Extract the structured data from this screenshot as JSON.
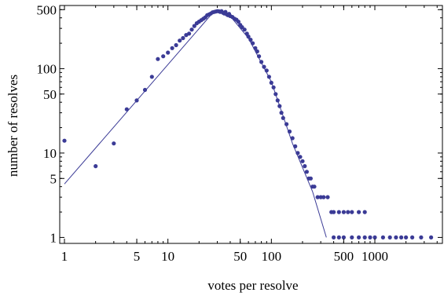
{
  "chart_data": {
    "type": "scatter",
    "title": "",
    "xlabel": "votes per resolve",
    "ylabel": "number of resolves",
    "xscale": "log",
    "yscale": "log",
    "xlim": [
      0.9,
      4500
    ],
    "ylim": [
      0.85,
      560
    ],
    "x_ticks": [
      {
        "value": 1,
        "label": "1"
      },
      {
        "value": 5,
        "label": "5"
      },
      {
        "value": 10,
        "label": "10"
      },
      {
        "value": 50,
        "label": "50"
      },
      {
        "value": 100,
        "label": "100"
      },
      {
        "value": 500,
        "label": "500"
      },
      {
        "value": 1000,
        "label": "1000"
      }
    ],
    "y_ticks": [
      {
        "value": 1,
        "label": "1"
      },
      {
        "value": 5,
        "label": "5"
      },
      {
        "value": 10,
        "label": "10"
      },
      {
        "value": 50,
        "label": "50"
      },
      {
        "value": 100,
        "label": "100"
      },
      {
        "value": 500,
        "label": "500"
      }
    ],
    "series": [
      {
        "points": [
          [
            1,
            14
          ],
          [
            2,
            7
          ],
          [
            3,
            13
          ],
          [
            4,
            33
          ],
          [
            5,
            42
          ],
          [
            6,
            56
          ],
          [
            7,
            80
          ],
          [
            8,
            130
          ],
          [
            9,
            140
          ],
          [
            10,
            155
          ],
          [
            11,
            175
          ],
          [
            12,
            190
          ],
          [
            13,
            215
          ],
          [
            14,
            230
          ],
          [
            15,
            250
          ],
          [
            16,
            260
          ],
          [
            17,
            290
          ],
          [
            18,
            320
          ],
          [
            19,
            345
          ],
          [
            20,
            360
          ],
          [
            21,
            375
          ],
          [
            22,
            390
          ],
          [
            23,
            405
          ],
          [
            24,
            430
          ],
          [
            25,
            440
          ],
          [
            26,
            450
          ],
          [
            27,
            465
          ],
          [
            28,
            470
          ],
          [
            29,
            475
          ],
          [
            30,
            480
          ],
          [
            31,
            478
          ],
          [
            32,
            470
          ],
          [
            33,
            480
          ],
          [
            34,
            460
          ],
          [
            35,
            450
          ],
          [
            36,
            470
          ],
          [
            37,
            440
          ],
          [
            38,
            430
          ],
          [
            39,
            445
          ],
          [
            40,
            420
          ],
          [
            42,
            410
          ],
          [
            44,
            390
          ],
          [
            46,
            380
          ],
          [
            48,
            360
          ],
          [
            50,
            330
          ],
          [
            52,
            310
          ],
          [
            55,
            290
          ],
          [
            58,
            260
          ],
          [
            60,
            240
          ],
          [
            63,
            220
          ],
          [
            66,
            200
          ],
          [
            70,
            175
          ],
          [
            73,
            160
          ],
          [
            76,
            140
          ],
          [
            80,
            120
          ],
          [
            85,
            105
          ],
          [
            90,
            95
          ],
          [
            95,
            80
          ],
          [
            100,
            68
          ],
          [
            105,
            60
          ],
          [
            110,
            50
          ],
          [
            115,
            42
          ],
          [
            120,
            36
          ],
          [
            125,
            30
          ],
          [
            130,
            26
          ],
          [
            140,
            22
          ],
          [
            150,
            18
          ],
          [
            160,
            15
          ],
          [
            170,
            12
          ],
          [
            180,
            10
          ],
          [
            190,
            9
          ],
          [
            200,
            8
          ],
          [
            210,
            7
          ],
          [
            220,
            6
          ],
          [
            230,
            5
          ],
          [
            240,
            5
          ],
          [
            250,
            4
          ],
          [
            260,
            4
          ],
          [
            280,
            3
          ],
          [
            300,
            3
          ],
          [
            320,
            3
          ],
          [
            350,
            3
          ],
          [
            380,
            2
          ],
          [
            400,
            2
          ],
          [
            450,
            2
          ],
          [
            500,
            2
          ],
          [
            550,
            2
          ],
          [
            600,
            2
          ],
          [
            700,
            2
          ],
          [
            800,
            2
          ],
          [
            400,
            1
          ],
          [
            450,
            1
          ],
          [
            500,
            1
          ],
          [
            600,
            1
          ],
          [
            700,
            1
          ],
          [
            800,
            1
          ],
          [
            900,
            1
          ],
          [
            1000,
            1
          ],
          [
            1200,
            1
          ],
          [
            1400,
            1
          ],
          [
            1600,
            1
          ],
          [
            1800,
            1
          ],
          [
            2000,
            1
          ],
          [
            2300,
            1
          ],
          [
            2800,
            1
          ],
          [
            3500,
            1
          ]
        ]
      },
      {
        "type": "line",
        "points": [
          [
            1,
            4.3
          ],
          [
            28,
            480
          ],
          [
            40,
            420
          ],
          [
            60,
            230
          ],
          [
            100,
            70
          ],
          [
            160,
            13
          ],
          [
            250,
            3.5
          ],
          [
            340,
            1
          ]
        ]
      }
    ]
  }
}
